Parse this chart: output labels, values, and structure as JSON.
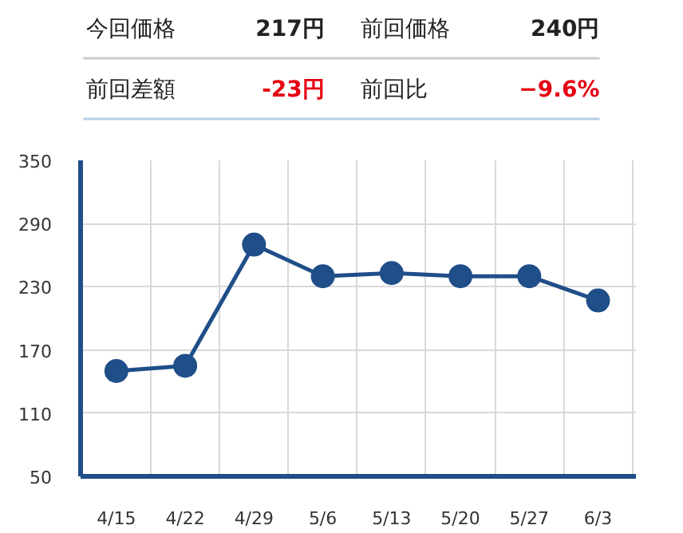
{
  "chart_data": [
    {
      "type": "other",
      "annotations": [
        "今回価格",
        "217円",
        "前回価格",
        "240円",
        "前回差額",
        "-23円",
        "前回比",
        "−9.6%"
      ]
    },
    {
      "type": "line",
      "categories": [
        "4/15",
        "4/22",
        "4/29",
        "5/6",
        "5/13",
        "5/20",
        "5/27",
        "6/3"
      ],
      "series": [
        {
          "color": "#1f4e89",
          "values": [
            150,
            155,
            270,
            240,
            243,
            240,
            240,
            217
          ]
        }
      ],
      "ylim": [
        50,
        350
      ],
      "yticks": [
        50,
        110,
        170,
        230,
        290,
        350
      ],
      "grid": true,
      "marker": "circle",
      "line_style": "solid"
    }
  ]
}
